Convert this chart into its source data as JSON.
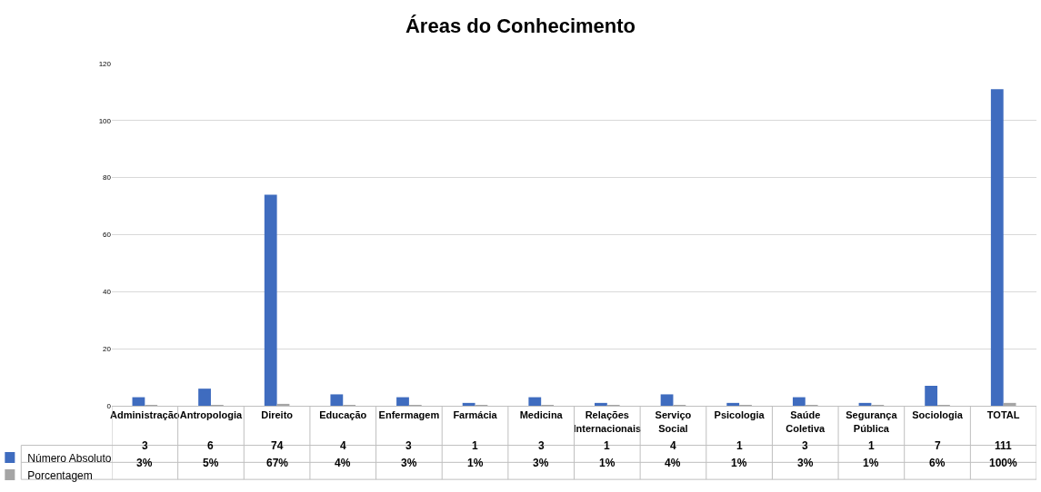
{
  "chart_data": {
    "type": "bar",
    "title": "Áreas do Conhecimento",
    "categories": [
      "Administração",
      "Antropologia",
      "Direito",
      "Educação",
      "Enfermagem",
      "Farmácia",
      "Medicina",
      "Relações Internacionais",
      "Serviço Social",
      "Psicologia",
      "Saúde Coletiva",
      "Segurança Pública",
      "Sociologia",
      "TOTAL"
    ],
    "series": [
      {
        "name": "Número Absoluto",
        "color": "#3f6cbf",
        "values": [
          3,
          6,
          74,
          4,
          3,
          1,
          3,
          1,
          4,
          1,
          3,
          1,
          7,
          111
        ],
        "value_labels": [
          "3",
          "6",
          "74",
          "4",
          "3",
          "1",
          "3",
          "1",
          "4",
          "1",
          "3",
          "1",
          "7",
          "111"
        ]
      },
      {
        "name": "Porcentagem",
        "color": "#a5a5a5",
        "values": [
          0.03,
          0.05,
          0.67,
          0.04,
          0.03,
          0.01,
          0.03,
          0.01,
          0.04,
          0.01,
          0.03,
          0.01,
          0.06,
          1.0
        ],
        "value_labels": [
          "3%",
          "5%",
          "67%",
          "4%",
          "3%",
          "1%",
          "3%",
          "1%",
          "4%",
          "1%",
          "3%",
          "1%",
          "6%",
          "100%"
        ]
      }
    ],
    "ylim": [
      0,
      120
    ],
    "yticks": [
      0,
      20,
      40,
      60,
      80,
      100,
      120
    ],
    "grid": "y",
    "legend": "bottom"
  }
}
